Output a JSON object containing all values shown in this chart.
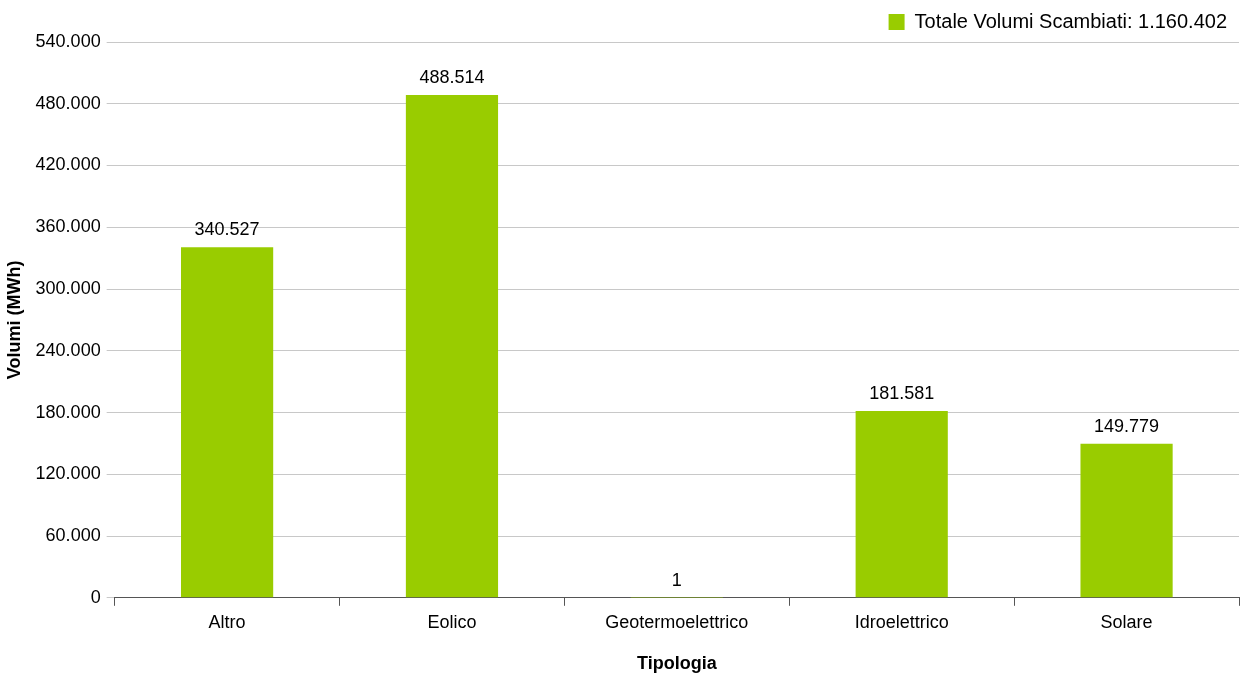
{
  "chart_data": {
    "type": "bar",
    "xlabel": "Tipologia",
    "ylabel": "Volumi (MWh)",
    "categories": [
      "Altro",
      "Eolico",
      "Geotermoelettrico",
      "Idroelettrico",
      "Solare"
    ],
    "series": [
      {
        "name": "Totale Volumi Scambiati: 1.160.402",
        "color": "#99cc00",
        "values": [
          340527,
          488514,
          1,
          181581,
          149779
        ],
        "value_labels": [
          "340.527",
          "488.514",
          "1",
          "181.581",
          "149.779"
        ]
      }
    ],
    "ylim": [
      0,
      540000
    ],
    "yticks": [
      0,
      {
        "value": 60000,
        "label": "60.000"
      },
      {
        "value": 120000,
        "label": "120.000"
      },
      {
        "value": 180000,
        "label": "180.000"
      },
      {
        "value": 240000,
        "label": "240.000"
      },
      {
        "value": 300000,
        "label": "300.000"
      },
      {
        "value": 360000,
        "label": "360.000"
      },
      {
        "value": 420000,
        "label": "420.000"
      },
      {
        "value": 480000,
        "label": "480.000"
      },
      {
        "value": 540000,
        "label": "540.000"
      }
    ],
    "grid": "y",
    "legend": "top right"
  }
}
